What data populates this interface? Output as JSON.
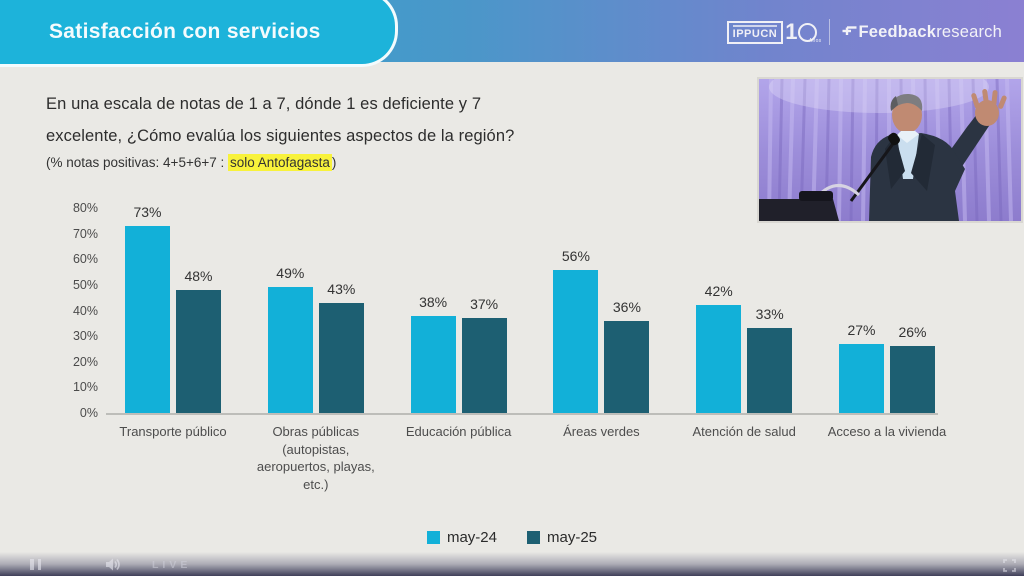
{
  "header": {
    "title": "Satisfacción con servicios",
    "logos": {
      "ippucn_text": "IPPUCN",
      "ippucn_one": "1",
      "ippucn_anios": "Años",
      "feedback_bold": "Feedback",
      "feedback_light": "research"
    }
  },
  "question": {
    "line1": "En una escala de notas de 1 a 7, dónde 1 es deficiente y 7",
    "line2": "excelente, ¿Cómo evalúa los siguientes aspectos de la región?",
    "note_prefix": "(% notas positivas: 4+5+6+7 : ",
    "note_highlight": "solo Antofagasta",
    "note_suffix": ")"
  },
  "chart_data": {
    "type": "bar",
    "categories": [
      "Transporte público",
      "Obras públicas\n(autopistas,\naeropuertos, playas,\netc.)",
      "Educación pública",
      "Áreas verdes",
      "Atención de salud",
      "Acceso a la vivienda"
    ],
    "series": [
      {
        "name": "may-24",
        "color": "#12b0d8",
        "values": [
          73,
          49,
          38,
          56,
          42,
          27
        ]
      },
      {
        "name": "may-25",
        "color": "#1d5f72",
        "values": [
          48,
          43,
          37,
          36,
          33,
          26
        ]
      }
    ],
    "value_suffix": "%",
    "title": "",
    "xlabel": "",
    "ylabel": "",
    "ylim": [
      0,
      80
    ],
    "yticks": [
      "80%",
      "70%",
      "60%",
      "50%",
      "40%",
      "30%",
      "20%",
      "10%",
      "0%"
    ],
    "grid": false,
    "legend_position": "bottom"
  },
  "player": {
    "live_label": "LIVE"
  },
  "colors": {
    "header_gradient_left": "#2ba9cf",
    "header_gradient_right": "#8b80d2",
    "title_pill": "#1db3da",
    "highlight_yellow": "#f8f23b",
    "slide_background": "#eae9e5",
    "bar_light": "#12b0d8",
    "bar_dark": "#1d5f72"
  }
}
